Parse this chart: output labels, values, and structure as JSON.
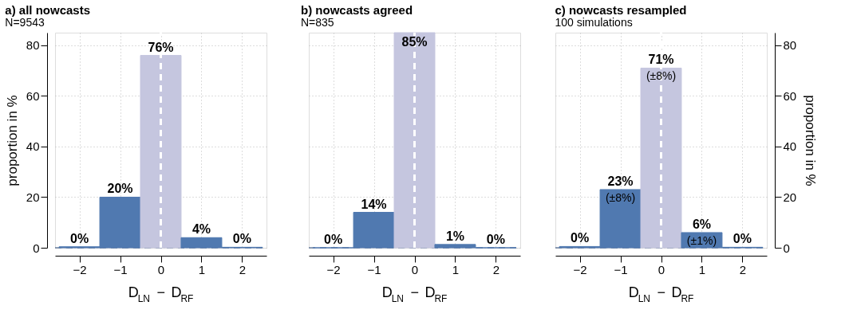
{
  "chart_data": [
    {
      "type": "histogram",
      "title": "a) all nowcasts",
      "subtitle": "N=9543",
      "xlabel": "D$_{LN}$ − D$_{RF}$",
      "ylabel": "proportion in %",
      "bins": [
        -2.5,
        -1.5,
        -0.5,
        0.5,
        1.5,
        2.5
      ],
      "values": [
        0.4,
        20,
        76,
        4,
        0.2
      ],
      "colors": [
        "#5079b0",
        "#5079b0",
        "#c5c6df",
        "#5079b0",
        "#5079b0"
      ],
      "value_labels": [
        "0%",
        "20%",
        "76%",
        "4%",
        "0%"
      ],
      "xlim": [
        -2.6,
        2.6
      ],
      "xticks": [
        -2,
        -1,
        0,
        1,
        2
      ],
      "ylim": [
        0,
        85
      ],
      "yticks": [
        0,
        20,
        40,
        60,
        80
      ],
      "grid": true,
      "tick_labels": "xy",
      "ref_lines": [
        {
          "axis": "x",
          "value": 0,
          "color": "#ffffff",
          "line_style": "dashed"
        },
        {
          "axis": "y",
          "value": 0,
          "color": "#2b4a7a",
          "line_style": "dashed"
        }
      ]
    },
    {
      "type": "histogram",
      "title": "b) nowcasts agreed",
      "subtitle": "N=835",
      "xlabel": "D$_{LN}$ − D$_{RF}$",
      "bins": [
        -2.5,
        -1.5,
        -0.5,
        0.5,
        1.5,
        2.5
      ],
      "values": [
        0,
        14,
        85,
        1.3,
        0
      ],
      "colors": [
        "#5079b0",
        "#5079b0",
        "#c5c6df",
        "#5079b0",
        "#5079b0"
      ],
      "value_labels": [
        "0%",
        "14%",
        "85%",
        "1%",
        "0%"
      ],
      "xlim": [
        -2.6,
        2.6
      ],
      "xticks": [
        -2,
        -1,
        0,
        1,
        2
      ],
      "ylim": [
        0,
        85
      ],
      "yticks": [
        0,
        20,
        40,
        60,
        80
      ],
      "grid": true,
      "tick_labels": "x",
      "ref_lines": [
        {
          "axis": "x",
          "value": 0,
          "color": "#ffffff",
          "line_style": "dashed"
        },
        {
          "axis": "y",
          "value": 0,
          "color": "#2b4a7a",
          "line_style": "dashed"
        }
      ]
    },
    {
      "type": "histogram",
      "title": "c) nowcasts resampled",
      "subtitle": "100 simulations",
      "xlabel": "D$_{LN}$ − D$_{RF}$",
      "y2label": "proportion in %",
      "bins": [
        -2.5,
        -1.5,
        -0.5,
        0.5,
        1.5,
        2.5
      ],
      "series": [
        {
          "axis": "y2",
          "values": [
            0.5,
            23,
            71,
            6,
            0.2
          ]
        }
      ],
      "colors": [
        "#5079b0",
        "#5079b0",
        "#c5c6df",
        "#5079b0",
        "#5079b0"
      ],
      "value_labels": [
        "0%",
        "23%\n(±8%)",
        "71%\n(±8%)",
        "6%\n(±1%)",
        "0%"
      ],
      "xlim": [
        -2.6,
        2.6
      ],
      "xticks": [
        -2,
        -1,
        0,
        1,
        2
      ],
      "y2lim": [
        0,
        85
      ],
      "y2ticks": [
        0,
        20,
        40,
        60,
        80
      ],
      "grid": true,
      "tick_labels": "xy",
      "ref_lines": [
        {
          "axis": "x",
          "value": 0,
          "color": "#ffffff",
          "line_style": "dashed"
        },
        {
          "axis": "y2",
          "value": 0,
          "color": "#2b4a7a",
          "line_style": "dashed"
        }
      ]
    }
  ]
}
